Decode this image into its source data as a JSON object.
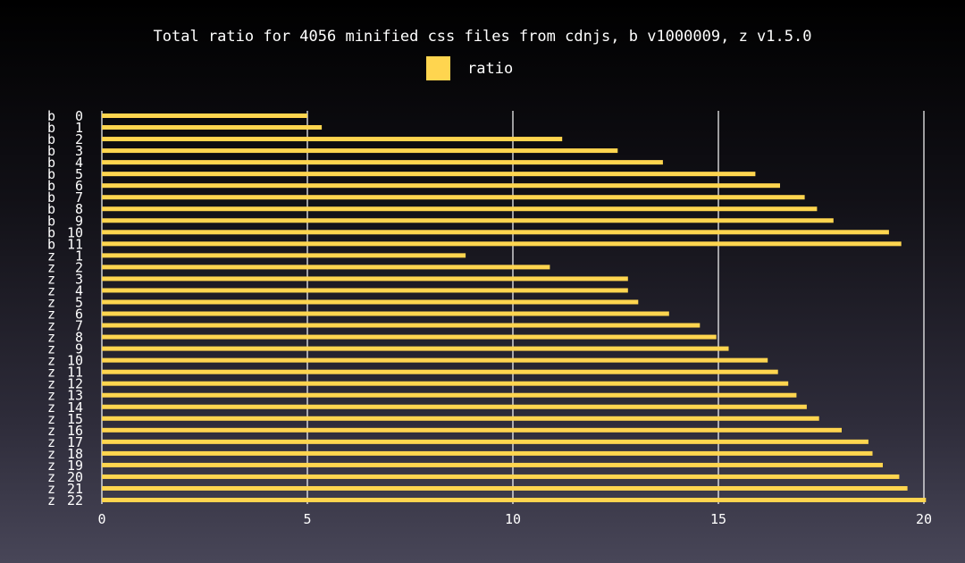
{
  "chart_data": {
    "type": "bar",
    "orientation": "horizontal",
    "title": "Total ratio for 4056 minified css files from cdnjs, b v1000009, z v1.5.0",
    "legend": {
      "position": "top",
      "entries": [
        "ratio"
      ]
    },
    "xlim": [
      0,
      20
    ],
    "x_ticks": [
      "0",
      "5",
      "10",
      "15",
      "20"
    ],
    "grid": "vertical",
    "categories": [
      "b  0",
      "b  1",
      "b  2",
      "b  3",
      "b  4",
      "b  5",
      "b  6",
      "b  7",
      "b  8",
      "b  9",
      "b 10",
      "b 11",
      "z  1",
      "z  2",
      "z  3",
      "z  4",
      "z  5",
      "z  6",
      "z  7",
      "z  8",
      "z  9",
      "z 10",
      "z 11",
      "z 12",
      "z 13",
      "z 14",
      "z 15",
      "z 16",
      "z 17",
      "z 18",
      "z 19",
      "z 20",
      "z 21",
      "z 22"
    ],
    "series": [
      {
        "name": "ratio",
        "color": "#ffd54f",
        "values": [
          5.0,
          5.35,
          11.2,
          12.55,
          13.65,
          15.9,
          16.5,
          17.1,
          17.4,
          17.8,
          19.15,
          19.45,
          8.85,
          10.9,
          12.8,
          12.8,
          13.05,
          13.8,
          14.55,
          14.95,
          15.25,
          16.2,
          16.45,
          16.7,
          16.9,
          17.15,
          17.45,
          18.0,
          18.65,
          18.75,
          19.0,
          19.4,
          19.6,
          20.05
        ]
      }
    ]
  }
}
